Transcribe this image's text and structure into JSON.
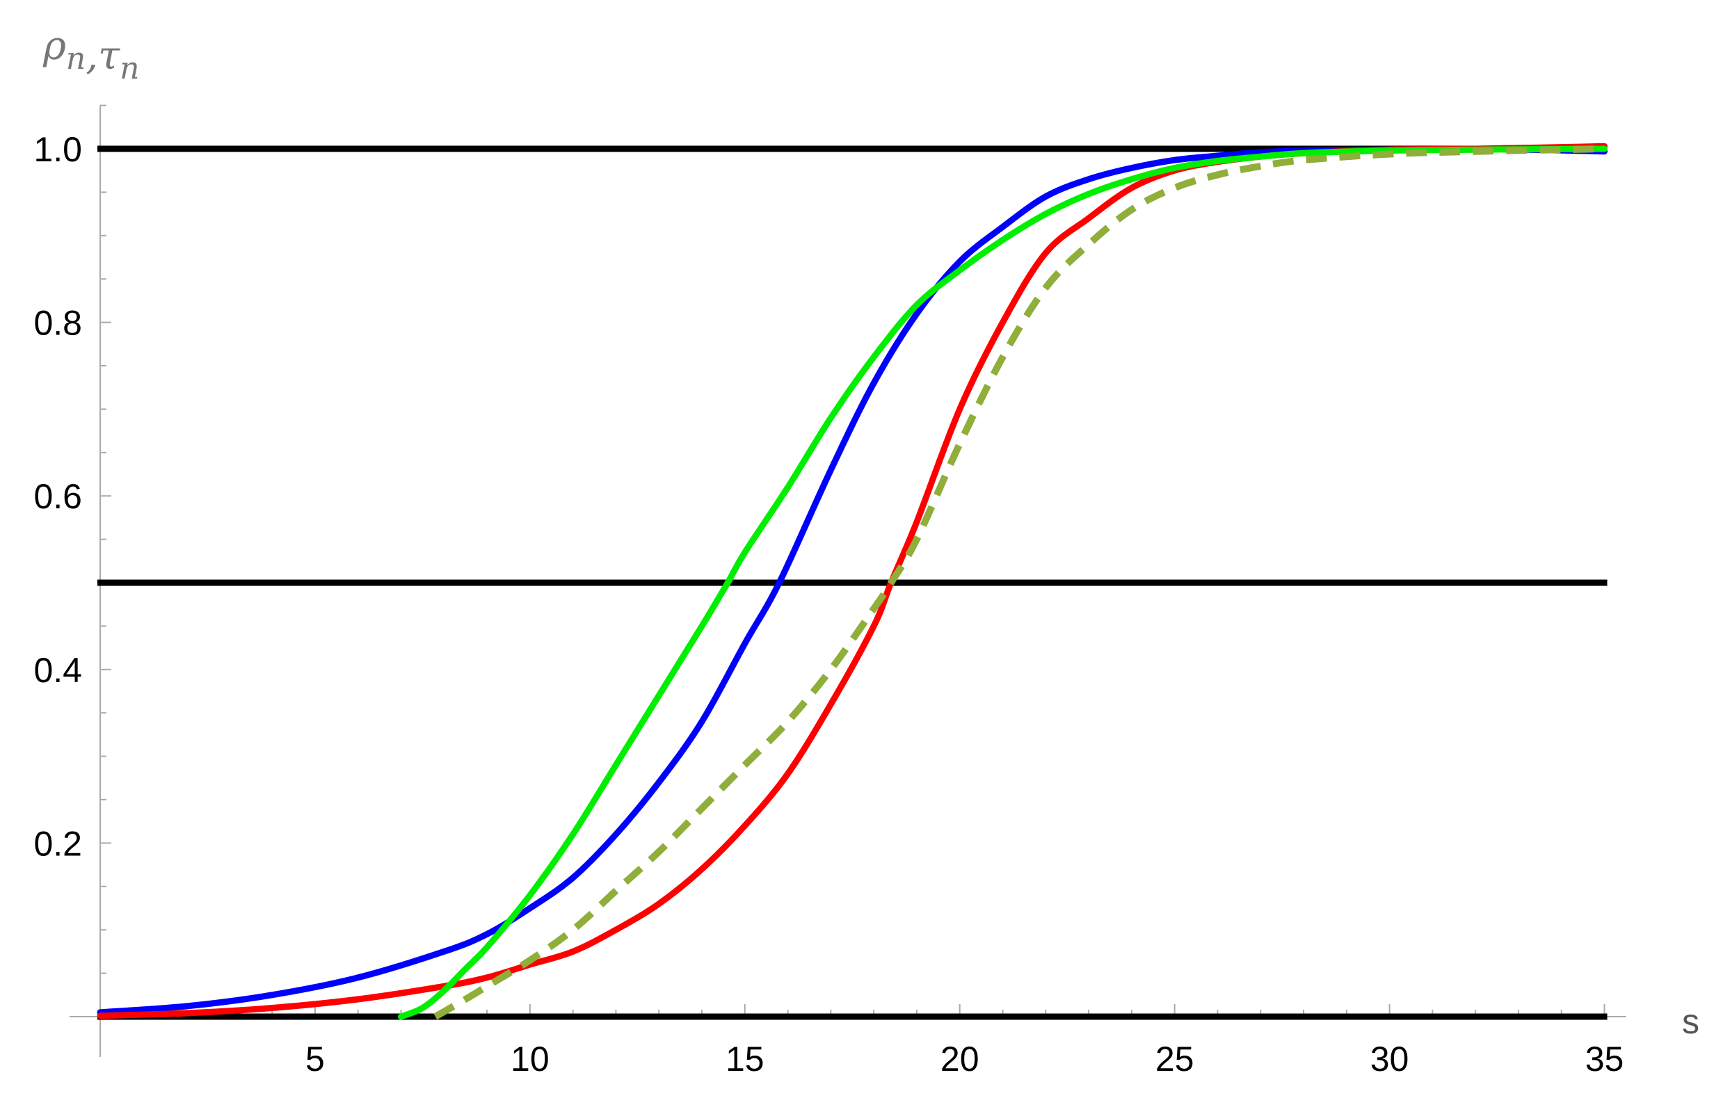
{
  "chart_data": {
    "type": "line",
    "xlabel": "s",
    "ylabel": "ρn,τn",
    "ylabel_main": [
      "ρ",
      "τ"
    ],
    "ylabel_sub": "n",
    "ylabel_sep": ",",
    "xlim": [
      0,
      35.5
    ],
    "ylim": [
      0,
      1.05
    ],
    "x_ticks": [
      5,
      10,
      15,
      20,
      25,
      30,
      35
    ],
    "y_ticks": [
      0.2,
      0.4,
      0.6,
      0.8,
      1.0
    ],
    "x_tick_labels": [
      "5",
      "10",
      "15",
      "20",
      "25",
      "30",
      "35"
    ],
    "y_tick_labels": [
      "0.2",
      "0.4",
      "0.6",
      "0.8",
      "1.0"
    ],
    "grid": false,
    "hlines": [
      {
        "y": 1.0,
        "color": "#000000"
      },
      {
        "y": 0.5,
        "color": "#000000"
      },
      {
        "y": 0.0,
        "color": "#000000"
      }
    ],
    "series": [
      {
        "color": "#0000ff",
        "style": "solid",
        "x": [
          0,
          2,
          4,
          6,
          8,
          9,
          10,
          11,
          12,
          13,
          14,
          15,
          15.8,
          17,
          18,
          19,
          20,
          21,
          22,
          23,
          24,
          25,
          26,
          27,
          28,
          30,
          32,
          35
        ],
        "y": [
          0.005,
          0.012,
          0.025,
          0.045,
          0.075,
          0.095,
          0.125,
          0.16,
          0.21,
          0.27,
          0.34,
          0.43,
          0.5,
          0.63,
          0.73,
          0.81,
          0.87,
          0.91,
          0.945,
          0.965,
          0.978,
          0.987,
          0.992,
          0.996,
          0.998,
          0.999,
          1.0,
          0.997
        ]
      },
      {
        "color": "#ff0000",
        "style": "solid",
        "x": [
          0,
          2,
          4,
          6,
          8,
          9,
          10,
          11,
          12,
          13,
          14,
          15,
          16,
          17,
          18,
          18.4,
          19,
          20,
          21,
          22,
          23,
          24,
          25,
          26,
          27,
          28,
          30,
          32,
          35
        ],
        "y": [
          0.001,
          0.004,
          0.01,
          0.02,
          0.035,
          0.045,
          0.06,
          0.075,
          0.1,
          0.13,
          0.17,
          0.22,
          0.28,
          0.36,
          0.45,
          0.5,
          0.57,
          0.7,
          0.8,
          0.88,
          0.92,
          0.955,
          0.975,
          0.985,
          0.991,
          0.995,
          0.999,
          1.0,
          1.003
        ]
      },
      {
        "color": "#00ee00",
        "style": "solid",
        "x": [
          7,
          7.5,
          8,
          8.5,
          9,
          10,
          11,
          12,
          13,
          14,
          14.6,
          15,
          16,
          17,
          18,
          19,
          20,
          21,
          22,
          23,
          24,
          25,
          26,
          27,
          28,
          30,
          32,
          35
        ],
        "y": [
          0.0,
          0.01,
          0.03,
          0.055,
          0.08,
          0.14,
          0.21,
          0.29,
          0.37,
          0.45,
          0.5,
          0.535,
          0.61,
          0.69,
          0.76,
          0.82,
          0.86,
          0.895,
          0.925,
          0.948,
          0.965,
          0.978,
          0.986,
          0.991,
          0.995,
          0.998,
          0.999,
          1.0
        ]
      },
      {
        "color": "#8fae3a",
        "style": "dashed",
        "x": [
          7.8,
          8.5,
          9,
          10,
          11,
          12,
          13,
          14,
          15,
          16,
          17,
          18,
          18.4,
          19,
          20,
          21,
          22,
          23,
          24,
          25,
          26,
          27,
          28,
          30,
          32,
          35
        ],
        "y": [
          0.0,
          0.02,
          0.035,
          0.065,
          0.1,
          0.145,
          0.19,
          0.24,
          0.29,
          0.34,
          0.4,
          0.47,
          0.5,
          0.55,
          0.66,
          0.76,
          0.84,
          0.89,
          0.93,
          0.955,
          0.97,
          0.98,
          0.987,
          0.994,
          0.997,
          1.0
        ]
      }
    ]
  }
}
